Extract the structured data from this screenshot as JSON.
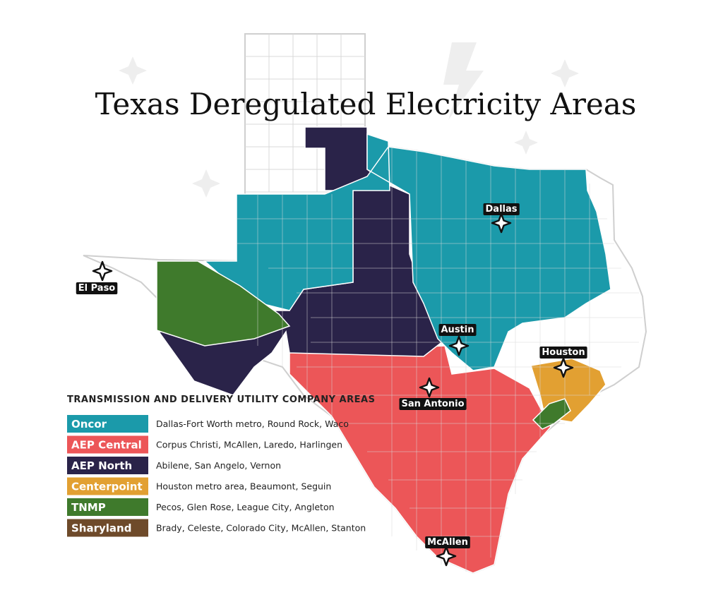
{
  "title": "Texas Deregulated Electricity Areas",
  "cities": [
    {
      "label": "El Paso"
    },
    {
      "label": "Dallas"
    },
    {
      "label": "Austin"
    },
    {
      "label": "Houston"
    },
    {
      "label": "San Antonio"
    },
    {
      "label": "McAllen"
    }
  ],
  "legend": {
    "heading": "TRANSMISSION AND DELIVERY UTILITY COMPANY AREAS",
    "items": [
      {
        "name": "Oncor",
        "description": "Dallas-Fort Worth metro, Round Rock, Waco",
        "color": "#1b9aaa"
      },
      {
        "name": "AEP Central",
        "description": "Corpus Christi, McAllen, Laredo, Harlingen",
        "color": "#ec5658"
      },
      {
        "name": "AEP North",
        "description": "Abilene, San Angelo, Vernon",
        "color": "#2a2349"
      },
      {
        "name": "Centerpoint",
        "description": "Houston metro area, Beaumont, Seguin",
        "color": "#e2a032"
      },
      {
        "name": "TNMP",
        "description": "Pecos, Glen Rose, League City, Angleton",
        "color": "#3f7a2c"
      },
      {
        "name": "Sharyland",
        "description": "Brady, Celeste, Colorado City, McAllen, Stanton",
        "color": "#6e4a2a"
      }
    ]
  }
}
